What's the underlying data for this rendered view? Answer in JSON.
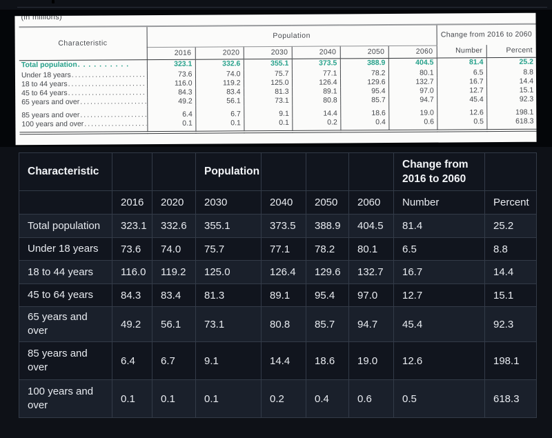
{
  "page": {
    "background": "#0e1117",
    "divider_color": "#2a303a",
    "image_strip_color": "#040609"
  },
  "source_image": {
    "background": "#fbfbfa",
    "accent_teal": "#27a18b",
    "units_note": "(in millions)"
  },
  "dark_table_theme": {
    "stripe_light": "#1a202b",
    "stripe_dark": "#11151e",
    "border": "#333b48",
    "text": "#e8ebf0"
  },
  "table_data": {
    "type": "table",
    "title_note": "(in millions)",
    "row_header": "Characteristic",
    "column_groups": {
      "population": "Population",
      "change": "Change from 2016 to 2060"
    },
    "columns": [
      "2016",
      "2020",
      "2030",
      "2040",
      "2050",
      "2060",
      "Number",
      "Percent"
    ],
    "rows": [
      {
        "label": "Total population",
        "emphasis": true,
        "values": [
          "323.1",
          "332.6",
          "355.1",
          "373.5",
          "388.9",
          "404.5",
          "81.4",
          "25.2"
        ]
      },
      {
        "label": "Under 18 years",
        "values": [
          "73.6",
          "74.0",
          "75.7",
          "77.1",
          "78.2",
          "80.1",
          "6.5",
          "8.8"
        ]
      },
      {
        "label": "18 to 44 years",
        "values": [
          "116.0",
          "119.2",
          "125.0",
          "126.4",
          "129.6",
          "132.7",
          "16.7",
          "14.4"
        ]
      },
      {
        "label": "45 to 64 years",
        "values": [
          "84.3",
          "83.4",
          "81.3",
          "89.1",
          "95.4",
          "97.0",
          "12.7",
          "15.1"
        ]
      },
      {
        "label": "65 years and over",
        "values": [
          "49.2",
          "56.1",
          "73.1",
          "80.8",
          "85.7",
          "94.7",
          "45.4",
          "92.3"
        ]
      },
      {
        "label": "85 years and over",
        "gap_before": true,
        "values": [
          "6.4",
          "6.7",
          "9.1",
          "14.4",
          "18.6",
          "19.0",
          "12.6",
          "198.1"
        ]
      },
      {
        "label": "100 years and over",
        "values": [
          "0.1",
          "0.1",
          "0.1",
          "0.2",
          "0.4",
          "0.6",
          "0.5",
          "618.3"
        ]
      }
    ]
  }
}
